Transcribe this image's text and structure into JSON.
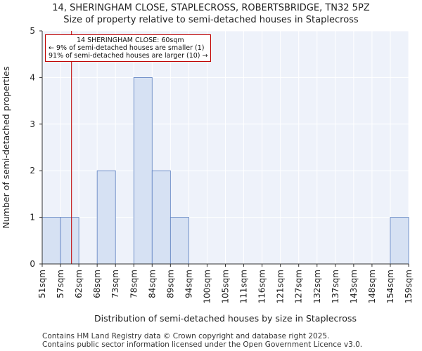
{
  "title": "14, SHERINGHAM CLOSE, STAPLECROSS, ROBERTSBRIDGE, TN32 5PZ",
  "subtitle": "Size of property relative to semi-detached houses in Staplecross",
  "footer": {
    "line1": "Contains HM Land Registry data © Crown copyright and database right 2025.",
    "line2": "Contains public sector information licensed under the Open Government Licence v3.0."
  },
  "annotation": {
    "line1": "14 SHERINGHAM CLOSE: 60sqm",
    "line2": "← 9% of semi-detached houses are smaller (1)",
    "line3": "91% of semi-detached houses are larger (10) →"
  },
  "colors": {
    "bar_fill": "#d6e1f3",
    "bar_edge": "#5b7fc0",
    "marker": "#c00000",
    "plot_bg": "#eef2fa",
    "grid": "#ffffff"
  },
  "chart_data": {
    "type": "bar",
    "title": "14, SHERINGHAM CLOSE, STAPLECROSS, ROBERTSBRIDGE, TN32 5PZ",
    "subtitle": "Size of property relative to semi-detached houses in Staplecross",
    "xlabel": "Distribution of semi-detached houses by size in Staplecross",
    "ylabel": "Number of semi-detached properties",
    "categories": [
      "51sqm",
      "57sqm",
      "62sqm",
      "68sqm",
      "73sqm",
      "78sqm",
      "84sqm",
      "89sqm",
      "94sqm",
      "100sqm",
      "105sqm",
      "111sqm",
      "116sqm",
      "121sqm",
      "127sqm",
      "132sqm",
      "137sqm",
      "143sqm",
      "148sqm",
      "154sqm",
      "159sqm"
    ],
    "values": [
      1,
      1,
      0,
      2,
      0,
      4,
      2,
      1,
      0,
      0,
      0,
      0,
      0,
      0,
      0,
      0,
      0,
      0,
      0,
      0,
      1
    ],
    "ylim": [
      0,
      5
    ],
    "yticks": [
      0,
      1,
      2,
      3,
      4,
      5
    ],
    "marker_value": 60,
    "marker_label": "14 SHERINGHAM CLOSE: 60sqm",
    "grid": true
  }
}
